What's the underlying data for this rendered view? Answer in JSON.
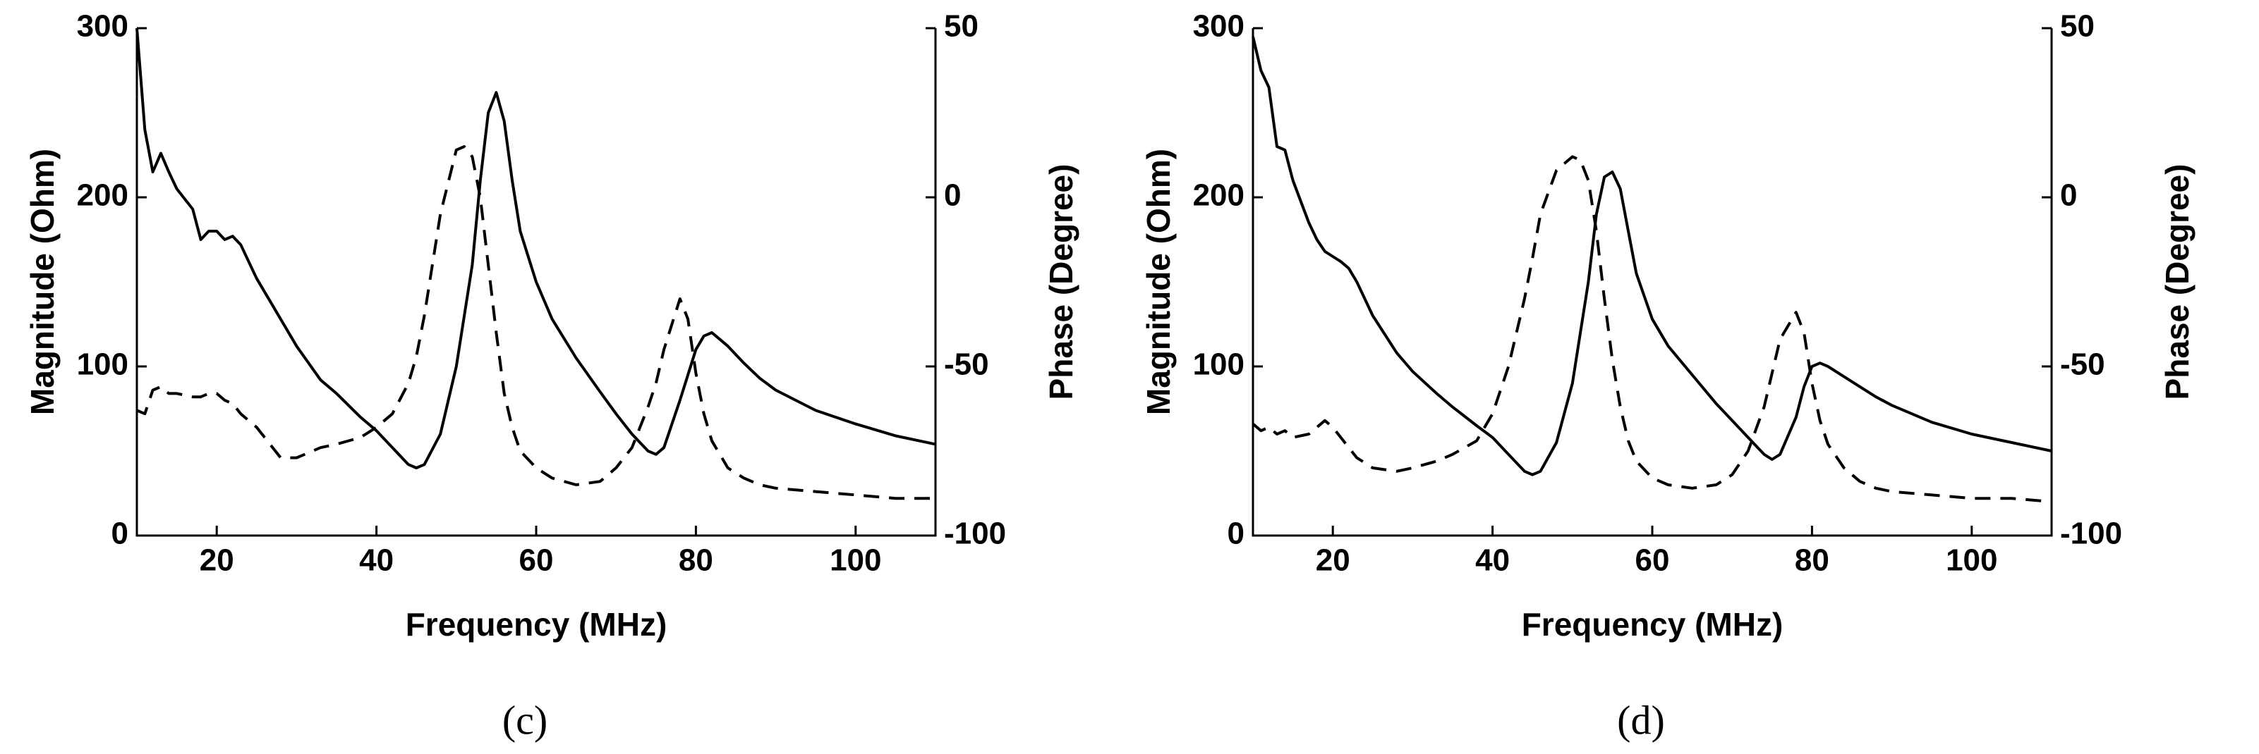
{
  "chart_data": [
    {
      "type": "line",
      "caption": "(c)",
      "xlabel": "Frequency (MHz)",
      "ylabel": "Magnitude (Ohm)",
      "y2label": "Phase (Degree)",
      "x": [
        10,
        11,
        12,
        13,
        14,
        15,
        17,
        18,
        19,
        20,
        21,
        22,
        23,
        25,
        28,
        30,
        33,
        35,
        38,
        40,
        42,
        44,
        45,
        46,
        48,
        50,
        51,
        52,
        53,
        54,
        55,
        56,
        57,
        58,
        60,
        62,
        65,
        68,
        70,
        72,
        74,
        75,
        76,
        78,
        79,
        80,
        81,
        82,
        84,
        86,
        88,
        90,
        95,
        100,
        105,
        110
      ],
      "xlim": [
        10,
        110
      ],
      "xticks": [
        20,
        40,
        60,
        80,
        100
      ],
      "ylim": [
        0,
        300
      ],
      "yticks": [
        0,
        100,
        200,
        300
      ],
      "y2lim": [
        -100,
        50
      ],
      "y2ticks": [
        -100,
        -50,
        0,
        50
      ],
      "series": [
        {
          "color": "#000000",
          "dash": "solid",
          "values": [
            300,
            240,
            215,
            226,
            215,
            205,
            193,
            175,
            180,
            180,
            175,
            177,
            172,
            152,
            128,
            112,
            92,
            84,
            70,
            62,
            52,
            42,
            40,
            42,
            60,
            100,
            130,
            160,
            210,
            250,
            262,
            245,
            210,
            180,
            150,
            128,
            105,
            85,
            72,
            60,
            50,
            48,
            52,
            80,
            95,
            110,
            118,
            120,
            112,
            102,
            93,
            86,
            74,
            66,
            59,
            54
          ]
        },
        {
          "color": "#000000",
          "dash": "dashed",
          "axis": "y2",
          "values": [
            -63,
            -64,
            -57,
            -56,
            -58,
            -58,
            -59,
            -59,
            -58,
            -58,
            -60,
            -61,
            -64,
            -68,
            -77,
            -77,
            -74,
            -73,
            -71,
            -68,
            -64,
            -55,
            -47,
            -35,
            -5,
            14,
            15,
            12,
            0,
            -20,
            -40,
            -58,
            -68,
            -75,
            -80,
            -83,
            -85,
            -84,
            -80,
            -74,
            -62,
            -55,
            -45,
            -30,
            -36,
            -52,
            -64,
            -72,
            -80,
            -83,
            -85,
            -86,
            -87,
            -88,
            -89,
            -89
          ]
        }
      ]
    },
    {
      "type": "line",
      "caption": "(d)",
      "xlabel": "Frequency (MHz)",
      "ylabel": "Magnitude (Ohm)",
      "y2label": "Phase (Degree)",
      "x": [
        10,
        11,
        12,
        13,
        14,
        15,
        17,
        18,
        19,
        20,
        21,
        22,
        23,
        25,
        28,
        30,
        33,
        35,
        38,
        40,
        42,
        44,
        45,
        46,
        48,
        50,
        51,
        52,
        53,
        54,
        55,
        56,
        57,
        58,
        60,
        62,
        65,
        68,
        70,
        72,
        74,
        75,
        76,
        78,
        79,
        80,
        81,
        82,
        84,
        86,
        88,
        90,
        95,
        100,
        105,
        110
      ],
      "xlim": [
        10,
        110
      ],
      "xticks": [
        20,
        40,
        60,
        80,
        100
      ],
      "ylim": [
        0,
        300
      ],
      "yticks": [
        0,
        100,
        200,
        300
      ],
      "y2lim": [
        -100,
        50
      ],
      "y2ticks": [
        -100,
        -50,
        0,
        50
      ],
      "series": [
        {
          "color": "#000000",
          "dash": "solid",
          "values": [
            295,
            275,
            265,
            230,
            228,
            210,
            185,
            175,
            168,
            165,
            162,
            158,
            150,
            130,
            108,
            97,
            84,
            76,
            65,
            58,
            48,
            38,
            36,
            38,
            55,
            90,
            120,
            150,
            190,
            212,
            215,
            205,
            180,
            155,
            128,
            112,
            95,
            78,
            68,
            58,
            48,
            45,
            48,
            70,
            88,
            100,
            102,
            100,
            94,
            88,
            82,
            77,
            67,
            60,
            55,
            50
          ]
        },
        {
          "color": "#000000",
          "dash": "dashed",
          "axis": "y2",
          "values": [
            -67,
            -69,
            -68,
            -70,
            -69,
            -71,
            -70,
            -68,
            -66,
            -68,
            -71,
            -74,
            -77,
            -80,
            -81,
            -80,
            -78,
            -76,
            -72,
            -64,
            -50,
            -30,
            -18,
            -5,
            8,
            12,
            11,
            5,
            -10,
            -30,
            -48,
            -62,
            -72,
            -78,
            -83,
            -85,
            -86,
            -85,
            -82,
            -75,
            -62,
            -52,
            -42,
            -34,
            -40,
            -55,
            -66,
            -73,
            -80,
            -84,
            -86,
            -87,
            -88,
            -89,
            -89,
            -90
          ]
        }
      ]
    }
  ]
}
